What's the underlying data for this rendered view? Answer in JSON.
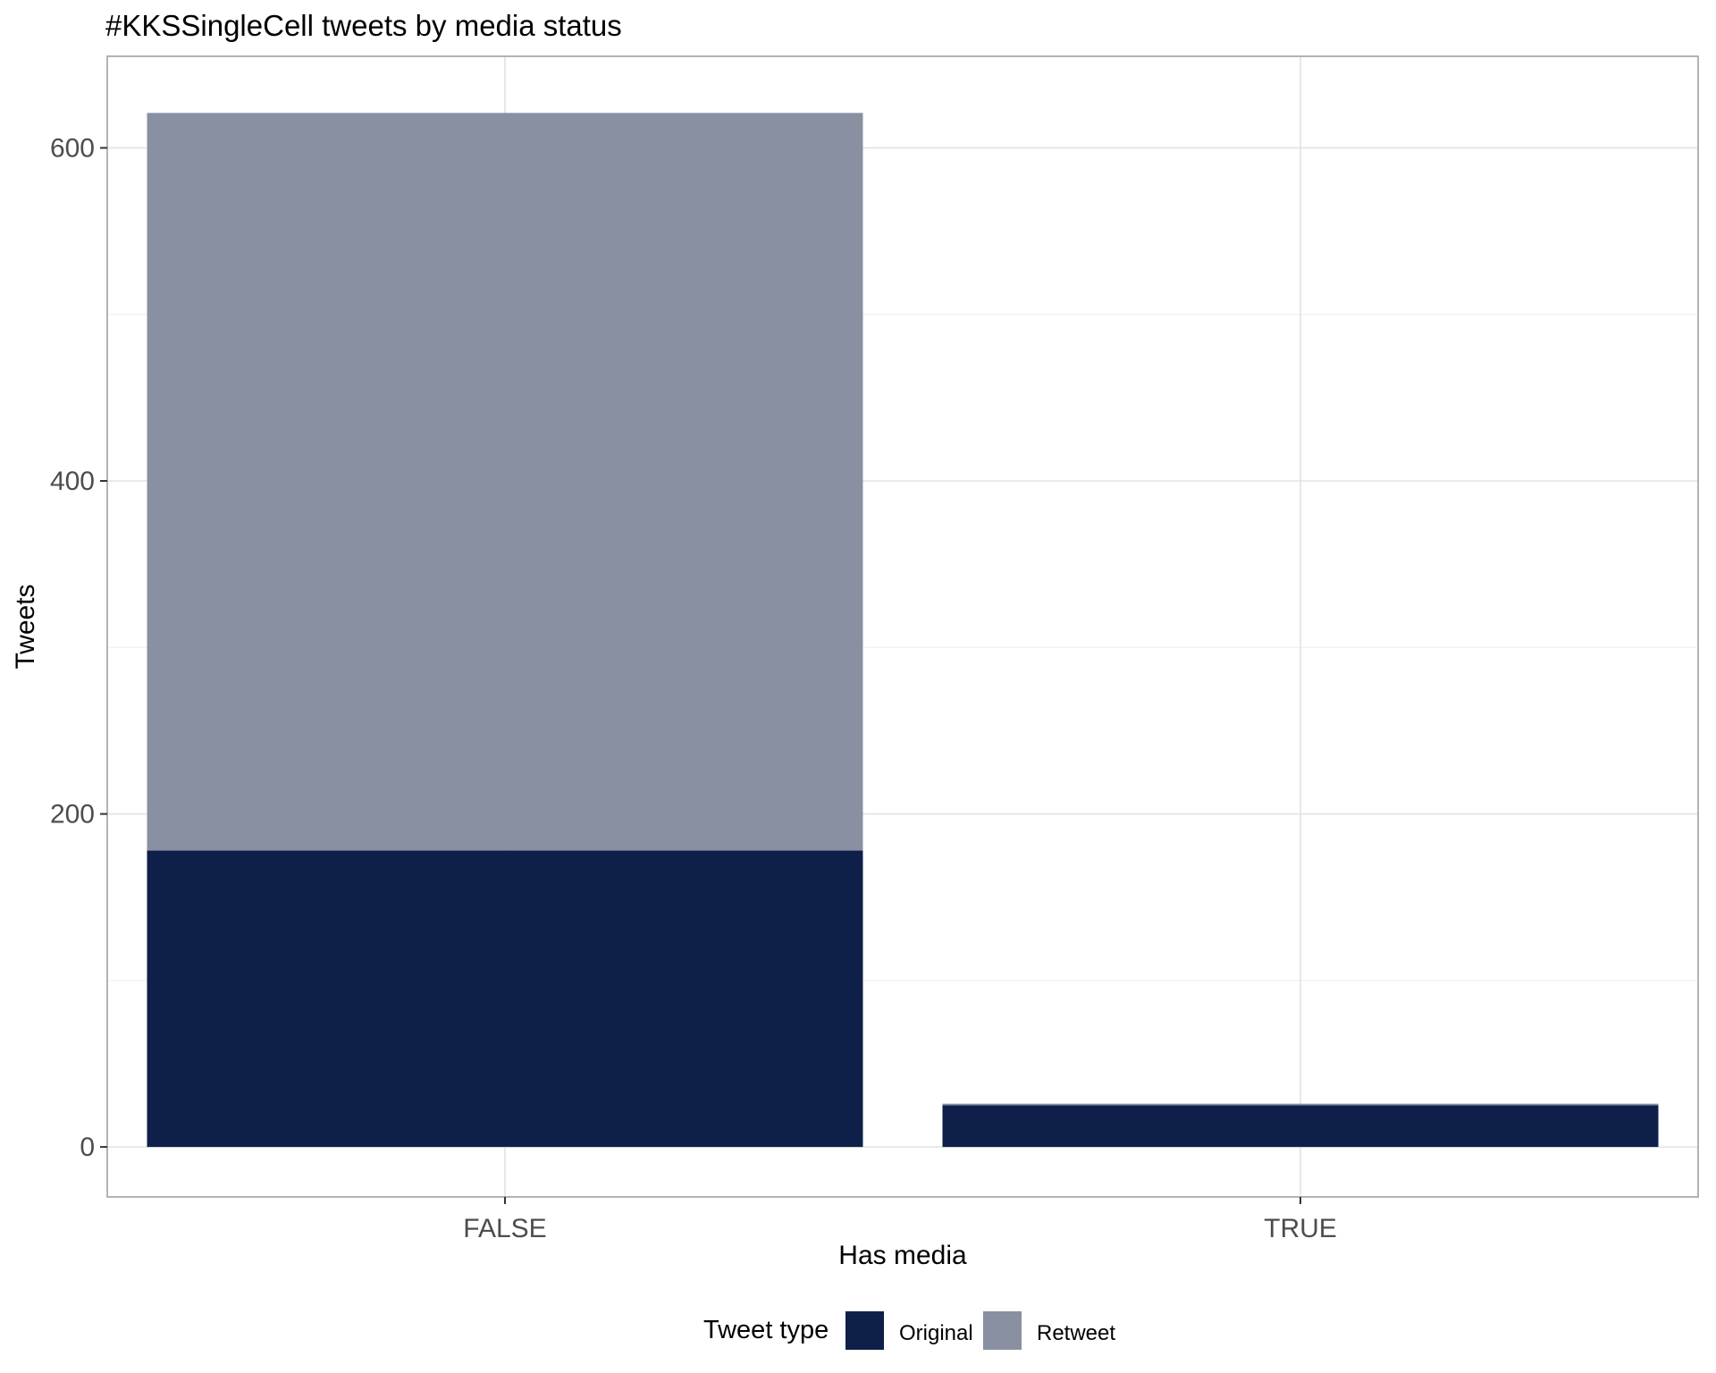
{
  "chart_data": {
    "type": "bar",
    "stacked": true,
    "title": "#KKSSingleCell tweets by media status",
    "xlabel": "Has media",
    "ylabel": "Tweets",
    "categories": [
      "FALSE",
      "TRUE"
    ],
    "series": [
      {
        "name": "Original",
        "values": [
          178,
          25
        ],
        "color": "#0e2049"
      },
      {
        "name": "Retweet",
        "values": [
          443,
          1
        ],
        "color": "#8890a2"
      }
    ],
    "ylim": [
      -30,
      655
    ],
    "yticks": [
      0,
      200,
      400,
      600
    ],
    "grid": true,
    "legend": {
      "title": "Tweet type",
      "position": "bottom"
    }
  }
}
